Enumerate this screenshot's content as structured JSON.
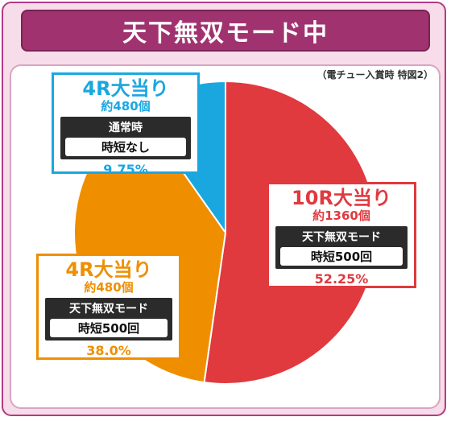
{
  "header": {
    "title": "天下無双モード中"
  },
  "note": "（電チュー入賞時 特図2）",
  "chart_data": {
    "type": "pie",
    "title": "天下無双モード中",
    "slices": [
      {
        "name": "10R大当り",
        "count": "約1360個",
        "mode": "天下無双モード",
        "jitan": "時短500回",
        "value": 52.25,
        "label": "52.25%",
        "color": "#e0393e"
      },
      {
        "name": "4R大当り",
        "count": "約480個",
        "mode": "天下無双モード",
        "jitan": "時短500回",
        "value": 38.0,
        "label": "38.0%",
        "color": "#ef8f00"
      },
      {
        "name": "4R大当り",
        "count": "約480個",
        "mode": "通常時",
        "jitan": "時短なし",
        "value": 9.75,
        "label": "9.75%",
        "color": "#1aa7e0"
      }
    ]
  }
}
